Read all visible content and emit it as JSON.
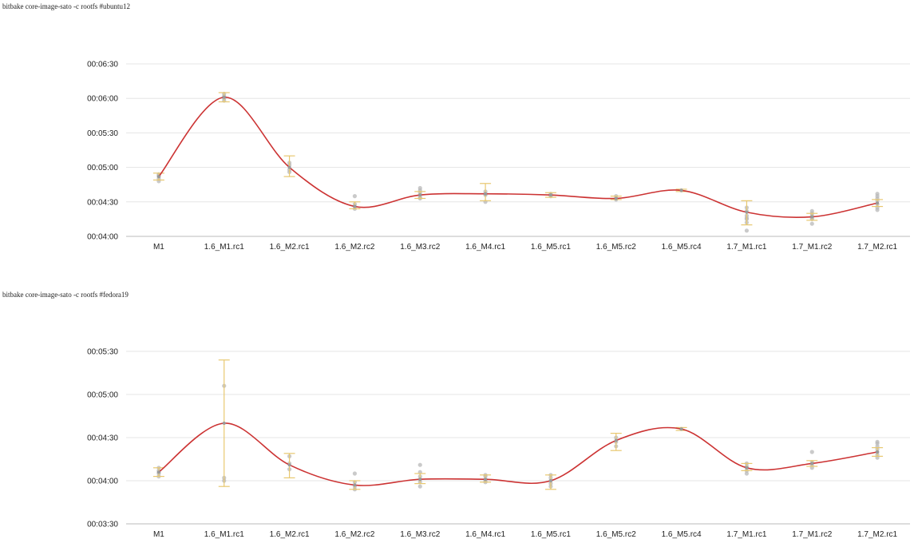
{
  "chart_data": [
    {
      "type": "line",
      "title": "bitbake core-image-sato -c rootfs #ubuntu12",
      "categories": [
        "M1",
        "1.6_M1.rc1",
        "1.6_M2.rc1",
        "1.6_M2.rc2",
        "1.6_M3.rc2",
        "1.6_M4.rc1",
        "1.6_M5.rc1",
        "1.6_M5.rc2",
        "1.6_M5.rc4",
        "1.7_M1.rc1",
        "1.7_M1.rc2",
        "1.7_M2.rc1"
      ],
      "y_ticks": [
        "00:04:00",
        "00:04:30",
        "00:05:00",
        "00:05:30",
        "00:06:00",
        "00:06:30"
      ],
      "ylim_seconds": [
        240,
        390
      ],
      "series": [
        {
          "values_seconds": [
            292,
            361,
            300,
            266,
            276,
            277,
            276,
            273,
            280,
            261,
            257,
            269
          ]
        }
      ],
      "error_bars_seconds": [
        [
          289,
          295
        ],
        [
          357,
          365
        ],
        [
          292,
          310
        ],
        [
          264,
          270
        ],
        [
          273,
          279
        ],
        [
          271,
          286
        ],
        [
          274,
          278
        ],
        [
          272,
          275
        ],
        [
          279,
          281
        ],
        [
          250,
          271
        ],
        [
          254,
          260
        ],
        [
          266,
          272
        ]
      ],
      "samples_seconds": [
        [
          290,
          292,
          293,
          294,
          288
        ],
        [
          360,
          361,
          362,
          358,
          364
        ],
        [
          298,
          302,
          304,
          296
        ],
        [
          264,
          266,
          268,
          275
        ],
        [
          274,
          276,
          278,
          280,
          282,
          273
        ],
        [
          270,
          276,
          277,
          279
        ],
        [
          275,
          276,
          277
        ],
        [
          272,
          273,
          275
        ],
        [
          280
        ],
        [
          252,
          255,
          258,
          262,
          265,
          245,
          256
        ],
        [
          251,
          255,
          258,
          260,
          262,
          256
        ],
        [
          265,
          268,
          271,
          273,
          275,
          277,
          263
        ]
      ],
      "colors": {
        "line": "#cc3333",
        "error_bar": "#e8c870",
        "points": "#b8b8b8",
        "grid": "#e5e5e5"
      },
      "grid": true
    },
    {
      "type": "line",
      "title": "bitbake core-image-sato -c rootfs #fedora19",
      "categories": [
        "M1",
        "1.6_M1.rc1",
        "1.6_M2.rc1",
        "1.6_M2.rc2",
        "1.6_M3.rc2",
        "1.6_M4.rc1",
        "1.6_M5.rc1",
        "1.6_M5.rc2",
        "1.6_M5.rc4",
        "1.7_M1.rc1",
        "1.7_M1.rc2",
        "1.7_M2.rc1"
      ],
      "y_ticks": [
        "00:03:30",
        "00:04:00",
        "00:04:30",
        "00:05:00",
        "00:05:30"
      ],
      "ylim_seconds": [
        210,
        330
      ],
      "series": [
        {
          "values_seconds": [
            246,
            280,
            251,
            237,
            241,
            241,
            240,
            268,
            276,
            249,
            252,
            260
          ]
        }
      ],
      "error_bars_seconds": [
        [
          243,
          249
        ],
        [
          236,
          324
        ],
        [
          242,
          259
        ],
        [
          234,
          240
        ],
        [
          238,
          245
        ],
        [
          239,
          244
        ],
        [
          234,
          244
        ],
        [
          261,
          273
        ],
        [
          275,
          277
        ],
        [
          247,
          252
        ],
        [
          250,
          254
        ],
        [
          257,
          263
        ]
      ],
      "samples_seconds": [
        [
          243,
          245,
          247,
          249,
          246
        ],
        [
          306,
          242,
          240
        ],
        [
          252,
          257,
          248
        ],
        [
          234,
          236,
          239,
          245
        ],
        [
          236,
          239,
          241,
          243,
          246,
          251
        ],
        [
          239,
          240,
          241,
          243,
          244
        ],
        [
          236,
          238,
          240,
          242,
          244
        ],
        [
          264,
          267,
          270
        ],
        [
          276
        ],
        [
          245,
          247,
          249,
          250,
          252
        ],
        [
          249,
          251,
          253,
          260
        ],
        [
          256,
          258,
          260,
          262,
          264,
          266,
          267
        ]
      ],
      "colors": {
        "line": "#cc3333",
        "error_bar": "#e8c870",
        "points": "#b8b8b8",
        "grid": "#e5e5e5"
      },
      "grid": true
    }
  ]
}
